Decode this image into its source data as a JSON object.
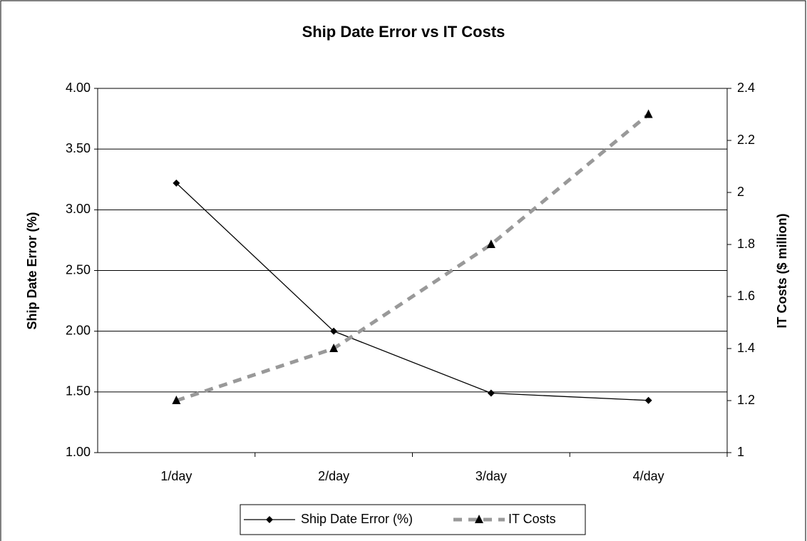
{
  "chart_data": {
    "type": "line",
    "title": "Ship Date Error vs IT Costs",
    "categories": [
      "1/day",
      "2/day",
      "3/day",
      "4/day"
    ],
    "series": [
      {
        "name": "Ship Date Error (%)",
        "color": "#000000",
        "marker": "diamond",
        "line_style": "solid",
        "values": [
          3.22,
          2.0,
          1.49,
          1.43
        ]
      },
      {
        "name": "IT Costs",
        "color": "#999999",
        "marker": "triangle",
        "line_style": "dashed",
        "axis": "y2",
        "values": [
          1.2,
          1.4,
          1.8,
          2.3
        ]
      }
    ],
    "ylabel": "Ship Date Error (%)",
    "y2label": "IT Costs ($ million)",
    "ylim": [
      1,
      4
    ],
    "yticks": [
      {
        "value": 1,
        "label": "1.00"
      },
      {
        "value": 1.5,
        "label": "1.50"
      },
      {
        "value": 2,
        "label": "2.00"
      },
      {
        "value": 2.5,
        "label": "2.50"
      },
      {
        "value": 3,
        "label": "3.00"
      },
      {
        "value": 3.5,
        "label": "3.50"
      },
      {
        "value": 4,
        "label": "4.00"
      }
    ],
    "y2lim": [
      1,
      2.4
    ],
    "y2ticks": [
      1,
      1.2,
      1.4,
      1.6,
      1.8,
      2,
      2.2,
      2.4
    ],
    "grid": true,
    "legend": "bottom"
  }
}
